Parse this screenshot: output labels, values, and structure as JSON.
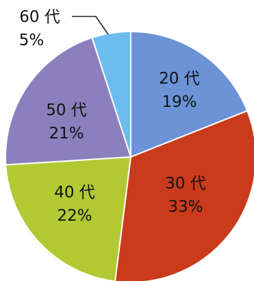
{
  "chart_data": {
    "type": "pie",
    "slices": [
      {
        "label": "20 代",
        "value": 19,
        "value_label": "19%",
        "color": "#6b93d6"
      },
      {
        "label": "30 代",
        "value": 33,
        "value_label": "33%",
        "color": "#c93b1b"
      },
      {
        "label": "40 代",
        "value": 22,
        "value_label": "22%",
        "color": "#b3c934"
      },
      {
        "label": "50 代",
        "value": 21,
        "value_label": "21%",
        "color": "#8b80bd"
      },
      {
        "label": "60 代",
        "value": 5,
        "value_label": "5%",
        "color": "#6ebcef"
      }
    ],
    "start_angle_deg": 0,
    "direction": "clockwise",
    "title": "",
    "legend": "none"
  }
}
